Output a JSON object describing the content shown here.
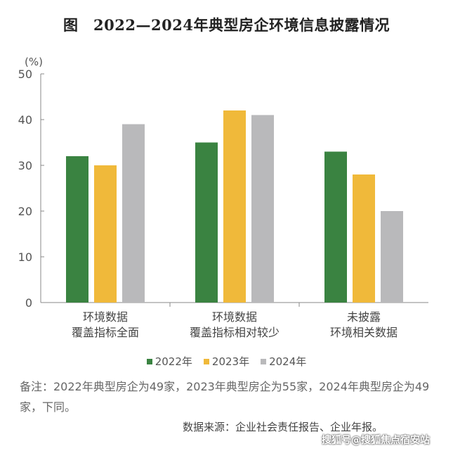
{
  "title": "图　2022—2024年典型房企环境信息披露情况",
  "chart_data": {
    "type": "bar",
    "ylabel": "(%)",
    "ylim": [
      0,
      50
    ],
    "yticks": [
      0,
      10,
      20,
      30,
      40,
      50
    ],
    "categories": [
      [
        "环境数据",
        "覆盖指标全面"
      ],
      [
        "环境数据",
        "覆盖指标相对较少"
      ],
      [
        "未披露",
        "环境相关数据"
      ]
    ],
    "series": [
      {
        "name": "2022年",
        "color": "#3a8341",
        "values": [
          32,
          35,
          33
        ]
      },
      {
        "name": "2023年",
        "color": "#f0b93a",
        "values": [
          30,
          42,
          28
        ]
      },
      {
        "name": "2024年",
        "color": "#b9b9bb",
        "values": [
          39,
          41,
          20
        ]
      }
    ],
    "legend_position": "bottom",
    "grid": false
  },
  "note": "备注：2022年典型房企为49家，2023年典型房企为55家，2024年典型房企为49家，下同。",
  "source": "数据来源：企业社会责任报告、企业年报。",
  "watermark": "搜狐号@搜狐焦点宿安站"
}
